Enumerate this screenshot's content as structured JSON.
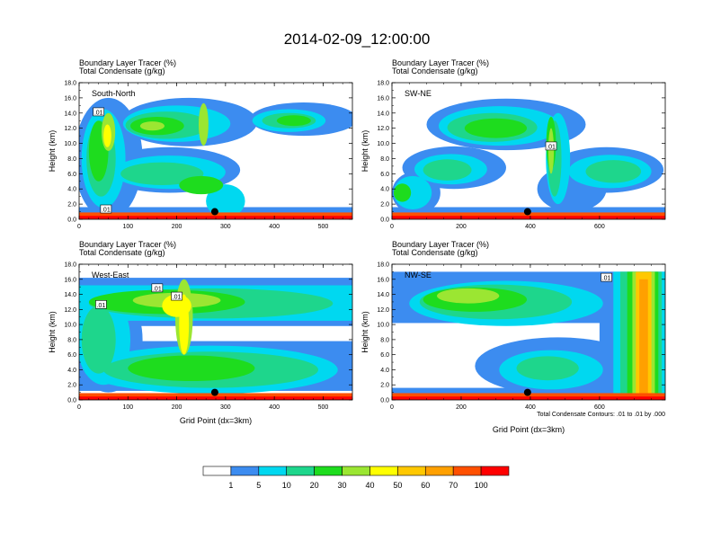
{
  "title": "2014-02-09_12:00:00",
  "chart_data": [
    {
      "type": "heatmap",
      "panel": "top-left",
      "title_lines": [
        "Boundary Layer Tracer   (%)",
        "Total Condensate   (g/kg)"
      ],
      "section_label": "South-North",
      "ylabel": "Height (km)",
      "xlabel": "",
      "xlim": [
        0,
        560
      ],
      "ylim": [
        0,
        18
      ],
      "xticks": [
        0,
        100,
        200,
        300,
        400,
        500
      ],
      "yticks": [
        0.0,
        2.0,
        4.0,
        6.0,
        8.0,
        10.0,
        12.0,
        14.0,
        16.0,
        18.0
      ],
      "contour_labels": [
        {
          "text": ".01",
          "x": 40,
          "y": 14.1
        },
        {
          "text": ".01",
          "x": 55,
          "y": 1.3
        }
      ],
      "marker": {
        "x": 278,
        "y": 1.0
      },
      "note": ""
    },
    {
      "type": "heatmap",
      "panel": "top-right",
      "title_lines": [
        "Boundary Layer Tracer   (%)",
        "Total Condensate   (g/kg)"
      ],
      "section_label": "SW-NE",
      "ylabel": "Height (km)",
      "xlabel": "",
      "xlim": [
        0,
        790
      ],
      "ylim": [
        0,
        18
      ],
      "xticks": [
        0,
        200,
        400,
        600
      ],
      "yticks": [
        0.0,
        2.0,
        4.0,
        6.0,
        8.0,
        10.0,
        12.0,
        14.0,
        16.0,
        18.0
      ],
      "contour_labels": [
        {
          "text": ".01",
          "x": 460,
          "y": 9.6
        }
      ],
      "marker": {
        "x": 392,
        "y": 1.0
      },
      "note": ""
    },
    {
      "type": "heatmap",
      "panel": "bottom-left",
      "title_lines": [
        "Boundary Layer Tracer   (%)",
        "Total Condensate   (g/kg)"
      ],
      "section_label": "West-East",
      "ylabel": "Height (km)",
      "xlabel": "Grid Point (dx=3km)",
      "xlim": [
        0,
        560
      ],
      "ylim": [
        0,
        18
      ],
      "xticks": [
        0,
        100,
        200,
        300,
        400,
        500
      ],
      "yticks": [
        0.0,
        2.0,
        4.0,
        6.0,
        8.0,
        10.0,
        12.0,
        14.0,
        16.0,
        18.0
      ],
      "contour_labels": [
        {
          "text": ".01",
          "x": 45,
          "y": 12.6
        },
        {
          "text": ".01",
          "x": 160,
          "y": 14.8
        },
        {
          "text": ".01",
          "x": 200,
          "y": 13.7
        }
      ],
      "marker": {
        "x": 278,
        "y": 1.0
      },
      "note": ""
    },
    {
      "type": "heatmap",
      "panel": "bottom-right",
      "title_lines": [
        "Boundary Layer Tracer   (%)",
        "Total Condensate   (g/kg)"
      ],
      "section_label": "NW-SE",
      "ylabel": "Height (km)",
      "xlabel": "Grid Point (dx=3km)",
      "xlim": [
        0,
        790
      ],
      "ylim": [
        0,
        18
      ],
      "xticks": [
        0,
        200,
        400,
        600
      ],
      "yticks": [
        0.0,
        2.0,
        4.0,
        6.0,
        8.0,
        10.0,
        12.0,
        14.0,
        16.0,
        18.0
      ],
      "contour_labels": [
        {
          "text": ".01",
          "x": 620,
          "y": 16.2
        }
      ],
      "marker": {
        "x": 392,
        "y": 1.0
      },
      "note": "Total Condensate Contours: .01 to .01 by .000"
    }
  ],
  "colorbar": {
    "labels": [
      "1",
      "5",
      "10",
      "20",
      "30",
      "40",
      "50",
      "60",
      "70",
      "100"
    ],
    "colors": [
      "#ffffff",
      "#3c8cf0",
      "#00d8f0",
      "#1ed68c",
      "#1edc1e",
      "#9be632",
      "#ffff00",
      "#ffc800",
      "#ffa000",
      "#ff5000",
      "#ff0000"
    ]
  }
}
